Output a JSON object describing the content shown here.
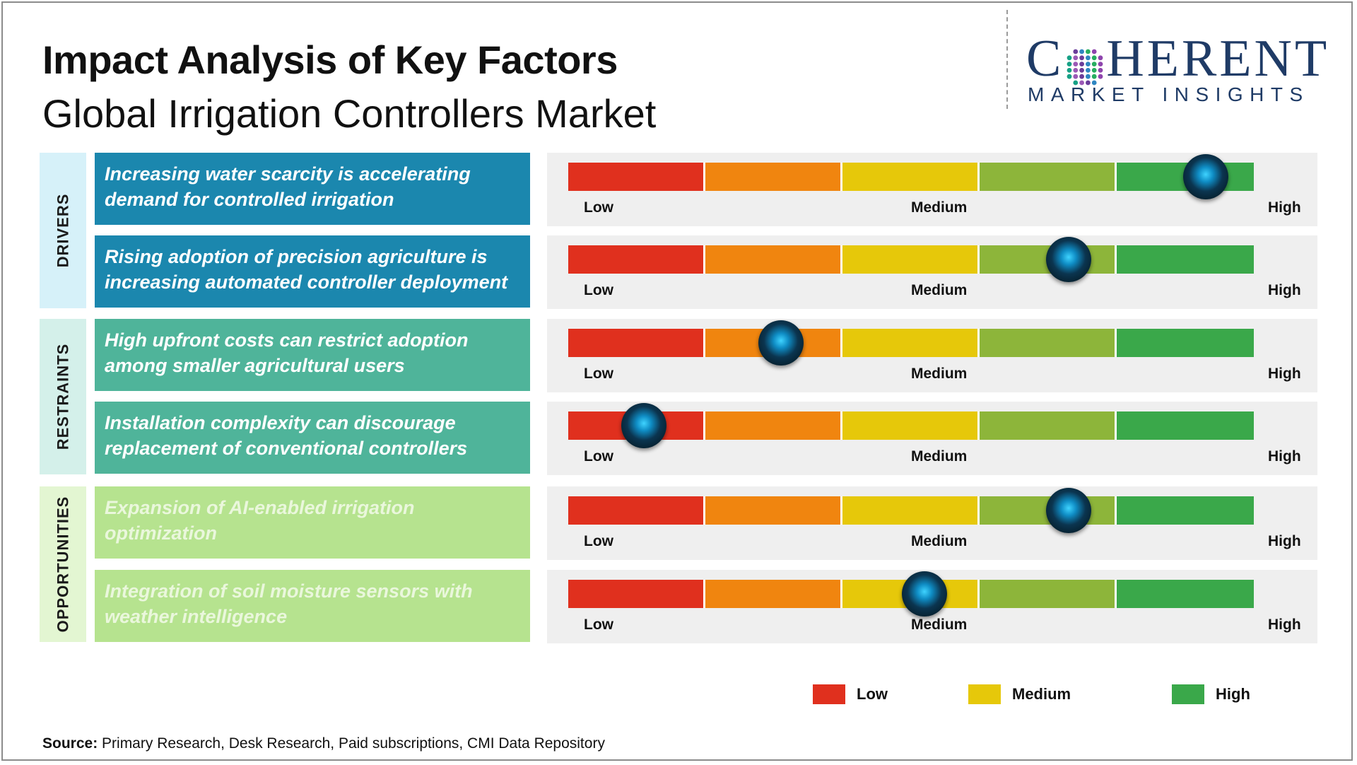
{
  "header": {
    "title": "Impact Analysis of Key Factors",
    "subtitle": "Global Irrigation Controllers Market"
  },
  "logo": {
    "brand": "COHERENT",
    "brand_prefix": "C",
    "brand_suffix": "HERENT",
    "tagline": "MARKET INSIGHTS",
    "color": "#1f3b66"
  },
  "scale_labels": {
    "low": "Low",
    "medium": "Medium",
    "high": "High"
  },
  "colors": {
    "segments": [
      "#e0301e",
      "#f0850f",
      "#e6c80a",
      "#8db53a",
      "#3aa84a"
    ],
    "drivers_bg": "#1b87ae",
    "restraints_bg": "#4fb49a",
    "opportunities_bg": "#b6e38f",
    "knob": "#0f8dc5"
  },
  "chart_data": {
    "type": "table",
    "scale": {
      "min": 0,
      "max": 1,
      "levels": [
        "Low",
        "Medium",
        "High"
      ]
    },
    "groups": [
      {
        "category": "DRIVERS",
        "factors": [
          {
            "text": "Increasing water scarcity is accelerating demand for controlled irrigation",
            "impact": 0.93
          },
          {
            "text": "Rising adoption of precision agriculture is increasing automated controller deployment",
            "impact": 0.73
          }
        ]
      },
      {
        "category": "RESTRAINTS",
        "factors": [
          {
            "text": "High upfront costs can restrict adoption among smaller agricultural users",
            "impact": 0.31
          },
          {
            "text": "Installation complexity can discourage replacement of conventional controllers",
            "impact": 0.11
          }
        ]
      },
      {
        "category": "OPPORTUNITIES",
        "factors": [
          {
            "text": "Expansion of AI-enabled irrigation optimization",
            "impact": 0.73
          },
          {
            "text": "Integration of soil moisture sensors with weather intelligence",
            "impact": 0.52
          }
        ]
      }
    ]
  },
  "legend": [
    {
      "label": "Low",
      "color": "#e0301e"
    },
    {
      "label": "Medium",
      "color": "#e6c80a"
    },
    {
      "label": "High",
      "color": "#3aa84a"
    }
  ],
  "source": {
    "label": "Source:",
    "text": " Primary Research, Desk Research, Paid subscriptions, CMI Data Repository"
  }
}
